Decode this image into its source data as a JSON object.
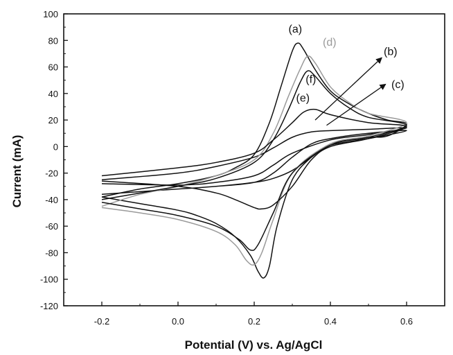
{
  "chart_data": {
    "type": "line",
    "xlabel": "Potential (V) vs. Ag/AgCl",
    "ylabel": "Current (mA)",
    "xlim": [
      -0.3,
      0.7
    ],
    "ylim": [
      -120,
      100
    ],
    "xticks": [
      "-0.2",
      "0.0",
      "0.2",
      "0.4",
      "0.6"
    ],
    "xtick_values": [
      -0.2,
      0.0,
      0.2,
      0.4,
      0.6
    ],
    "yticks": [
      "100",
      "80",
      "60",
      "40",
      "20",
      "0",
      "-20",
      "-40",
      "-60",
      "-80",
      "-100",
      "-120"
    ],
    "ytick_values": [
      100,
      80,
      60,
      40,
      20,
      0,
      -20,
      -40,
      -60,
      -80,
      -100,
      -120
    ],
    "grid": false,
    "series": [
      {
        "name": "(a)",
        "color": "#111111",
        "forward": [
          [
            -0.2,
            -38
          ],
          [
            -0.1,
            -32
          ],
          [
            0.0,
            -28
          ],
          [
            0.1,
            -22
          ],
          [
            0.15,
            -16
          ],
          [
            0.2,
            -6
          ],
          [
            0.24,
            18
          ],
          [
            0.27,
            45
          ],
          [
            0.3,
            72
          ],
          [
            0.315,
            78
          ],
          [
            0.33,
            73
          ],
          [
            0.36,
            58
          ],
          [
            0.4,
            42
          ],
          [
            0.45,
            32
          ],
          [
            0.5,
            25
          ],
          [
            0.55,
            20
          ],
          [
            0.6,
            17
          ]
        ],
        "reverse": [
          [
            0.6,
            9
          ],
          [
            0.55,
            8
          ],
          [
            0.5,
            7
          ],
          [
            0.45,
            5
          ],
          [
            0.4,
            2
          ],
          [
            0.35,
            -8
          ],
          [
            0.3,
            -25
          ],
          [
            0.26,
            -60
          ],
          [
            0.24,
            -90
          ],
          [
            0.225,
            -99
          ],
          [
            0.21,
            -94
          ],
          [
            0.19,
            -82
          ],
          [
            0.15,
            -68
          ],
          [
            0.1,
            -58
          ],
          [
            0.05,
            -52
          ],
          [
            0.0,
            -48
          ],
          [
            -0.1,
            -43
          ],
          [
            -0.2,
            -38
          ]
        ]
      },
      {
        "name": "(b)",
        "color": "#111111",
        "forward": [
          [
            -0.2,
            -36
          ],
          [
            0.0,
            -32
          ],
          [
            0.1,
            -30
          ],
          [
            0.2,
            -27
          ],
          [
            0.25,
            -20
          ],
          [
            0.3,
            -8
          ],
          [
            0.35,
            2
          ],
          [
            0.4,
            6
          ],
          [
            0.5,
            10
          ],
          [
            0.6,
            12
          ]
        ],
        "reverse": [
          [
            0.6,
            8
          ],
          [
            0.5,
            6
          ],
          [
            0.4,
            1
          ],
          [
            0.35,
            -8
          ],
          [
            0.3,
            -18
          ],
          [
            0.25,
            -24
          ],
          [
            0.2,
            -27
          ],
          [
            0.1,
            -30
          ],
          [
            0.0,
            -32
          ],
          [
            -0.2,
            -36
          ]
        ]
      },
      {
        "name": "(c)",
        "color": "#111111",
        "forward": [
          [
            -0.2,
            -25
          ],
          [
            0.0,
            -20
          ],
          [
            0.1,
            -15
          ],
          [
            0.2,
            -8
          ],
          [
            0.25,
            -1
          ],
          [
            0.3,
            7
          ],
          [
            0.35,
            11
          ],
          [
            0.4,
            12
          ],
          [
            0.5,
            13
          ],
          [
            0.6,
            14
          ]
        ],
        "reverse": [
          [
            0.6,
            11
          ],
          [
            0.5,
            9
          ],
          [
            0.4,
            5
          ],
          [
            0.3,
            -5
          ],
          [
            0.25,
            -14
          ],
          [
            0.2,
            -22
          ],
          [
            0.1,
            -27
          ],
          [
            0.0,
            -29
          ],
          [
            -0.2,
            -28
          ]
        ]
      },
      {
        "name": "(d)",
        "color": "#9a9a9a",
        "forward": [
          [
            -0.2,
            -45
          ],
          [
            -0.1,
            -36
          ],
          [
            0.0,
            -30
          ],
          [
            0.1,
            -22
          ],
          [
            0.2,
            -10
          ],
          [
            0.25,
            10
          ],
          [
            0.29,
            38
          ],
          [
            0.32,
            58
          ],
          [
            0.34,
            68
          ],
          [
            0.36,
            63
          ],
          [
            0.4,
            45
          ],
          [
            0.45,
            33
          ],
          [
            0.5,
            25
          ],
          [
            0.6,
            18
          ]
        ],
        "reverse": [
          [
            0.6,
            10
          ],
          [
            0.5,
            8
          ],
          [
            0.4,
            2
          ],
          [
            0.3,
            -20
          ],
          [
            0.25,
            -55
          ],
          [
            0.22,
            -80
          ],
          [
            0.2,
            -89
          ],
          [
            0.18,
            -86
          ],
          [
            0.15,
            -74
          ],
          [
            0.1,
            -64
          ],
          [
            0.0,
            -55
          ],
          [
            -0.1,
            -50
          ],
          [
            -0.2,
            -46
          ]
        ]
      },
      {
        "name": "(e)",
        "color": "#111111",
        "forward": [
          [
            -0.2,
            -22
          ],
          [
            0.0,
            -16
          ],
          [
            0.1,
            -12
          ],
          [
            0.2,
            -5
          ],
          [
            0.25,
            5
          ],
          [
            0.3,
            18
          ],
          [
            0.33,
            26
          ],
          [
            0.36,
            28
          ],
          [
            0.4,
            24
          ],
          [
            0.5,
            18
          ],
          [
            0.6,
            15
          ]
        ],
        "reverse": [
          [
            0.6,
            8
          ],
          [
            0.5,
            6
          ],
          [
            0.4,
            0
          ],
          [
            0.35,
            -10
          ],
          [
            0.3,
            -30
          ],
          [
            0.25,
            -44
          ],
          [
            0.22,
            -47
          ],
          [
            0.2,
            -46
          ],
          [
            0.15,
            -40
          ],
          [
            0.1,
            -35
          ],
          [
            0.0,
            -30
          ],
          [
            -0.2,
            -26
          ]
        ]
      },
      {
        "name": "(f)",
        "color": "#111111",
        "forward": [
          [
            -0.2,
            -40
          ],
          [
            0.0,
            -30
          ],
          [
            0.1,
            -24
          ],
          [
            0.2,
            -12
          ],
          [
            0.25,
            5
          ],
          [
            0.29,
            28
          ],
          [
            0.32,
            48
          ],
          [
            0.34,
            57
          ],
          [
            0.36,
            53
          ],
          [
            0.4,
            40
          ],
          [
            0.45,
            29
          ],
          [
            0.5,
            22
          ],
          [
            0.6,
            16
          ]
        ],
        "reverse": [
          [
            0.6,
            9
          ],
          [
            0.5,
            7
          ],
          [
            0.4,
            1
          ],
          [
            0.3,
            -20
          ],
          [
            0.25,
            -50
          ],
          [
            0.21,
            -74
          ],
          [
            0.19,
            -78
          ],
          [
            0.16,
            -70
          ],
          [
            0.1,
            -60
          ],
          [
            0.0,
            -52
          ],
          [
            -0.1,
            -47
          ],
          [
            -0.2,
            -42
          ]
        ]
      }
    ],
    "annotations": [
      {
        "label": "(a)",
        "color": "#111111",
        "x": 0.29,
        "y": 86
      },
      {
        "label": "(d)",
        "color": "#9a9a9a",
        "x": 0.38,
        "y": 76
      },
      {
        "label": "(b)",
        "color": "#111111",
        "x": 0.54,
        "y": 69
      },
      {
        "label": "(f)",
        "color": "#111111",
        "x": 0.335,
        "y": 48
      },
      {
        "label": "(c)",
        "color": "#111111",
        "x": 0.56,
        "y": 44
      },
      {
        "label": "(e)",
        "color": "#111111",
        "x": 0.31,
        "y": 34
      }
    ],
    "arrows": [
      {
        "from": [
          0.36,
          20
        ],
        "to": [
          0.535,
          67
        ],
        "color": "#111111"
      },
      {
        "from": [
          0.39,
          16
        ],
        "to": [
          0.545,
          47
        ],
        "color": "#111111"
      }
    ]
  }
}
